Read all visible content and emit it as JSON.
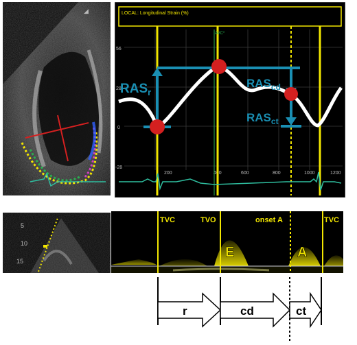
{
  "strain_panel": {
    "header_label": "LOCAL: Longitudinal Strain (%)",
    "marker_label": "AVC*",
    "y_ticks": [
      "56",
      "28",
      "0",
      "-28"
    ],
    "x_ticks": [
      "200",
      "400",
      "600",
      "800",
      "1000",
      "1200"
    ],
    "annotations": {
      "ras_r": {
        "main": "RAS",
        "sub": "r"
      },
      "ras_cd": {
        "main": "RAS",
        "sub": "cd"
      },
      "ras_ct": {
        "main": "RAS",
        "sub": "ct"
      }
    }
  },
  "apical_view": {
    "depth_ticks": [
      "5",
      "10",
      "15"
    ]
  },
  "doppler_panel": {
    "event_labels": [
      "TVC",
      "TVO",
      "onset A",
      "TVC"
    ],
    "wave_labels": [
      "E",
      "A"
    ]
  },
  "phase_arrows": [
    "r",
    "cd",
    "ct"
  ],
  "colors": {
    "marker_yellow": "#f2e600",
    "annotation_teal": "#1a8fb3",
    "point_red": "#d42020"
  }
}
